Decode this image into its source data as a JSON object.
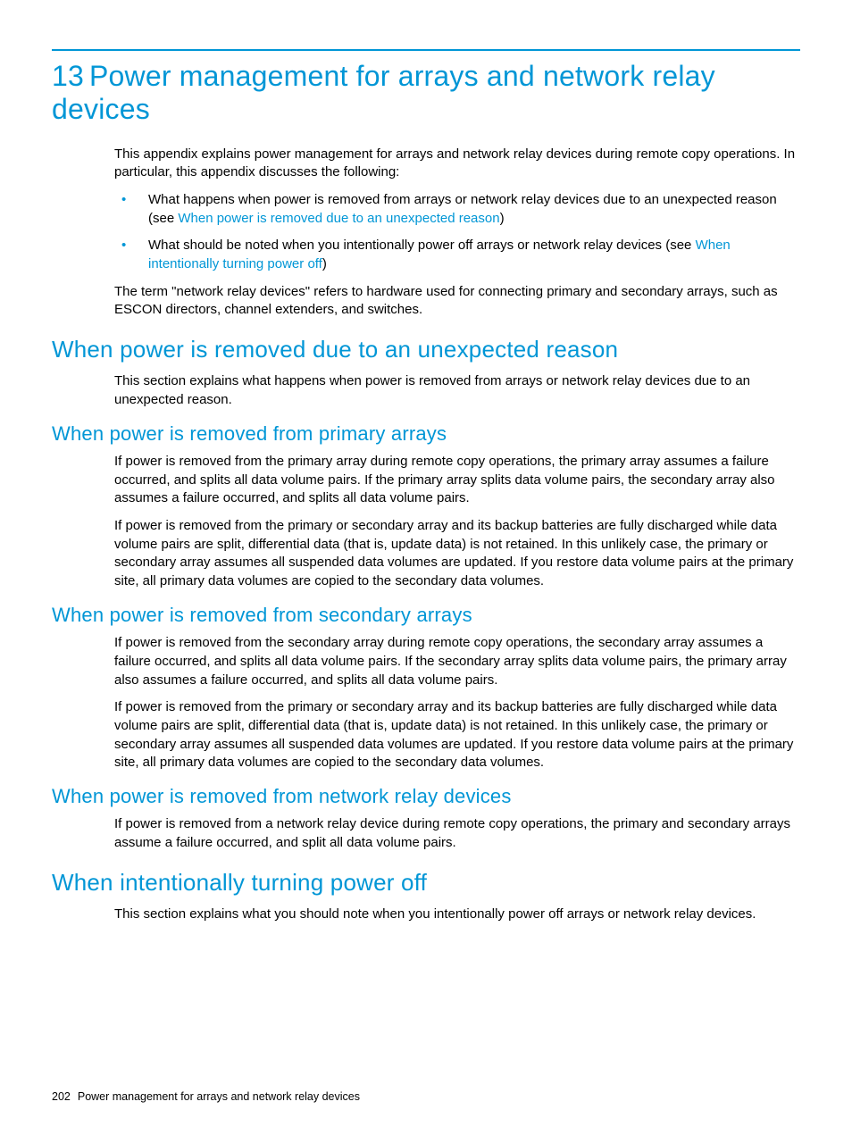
{
  "colors": {
    "accent": "#0096d6",
    "text": "#000000",
    "background": "#ffffff"
  },
  "typography": {
    "body_fontsize_pt": 11,
    "h1_fontsize_pt": 24,
    "h2_fontsize_pt": 19,
    "h3_fontsize_pt": 16,
    "font_family": "Arial"
  },
  "chapter": {
    "number": "13",
    "title": "Power management for arrays and network relay devices"
  },
  "intro": {
    "p1": "This appendix explains power management for arrays and network relay devices during remote copy operations. In particular, this appendix discusses the following:",
    "bullets": [
      {
        "pre": "What happens when power is removed from arrays or network relay devices due to an unexpected reason (see ",
        "link": "When power is removed due to an unexpected reason",
        "post": ")"
      },
      {
        "pre": "What should be noted when you intentionally power off arrays or network relay devices (see ",
        "link": "When intentionally turning power off",
        "post": ")"
      }
    ],
    "p2": "The term \"network relay devices\" refers to hardware used for connecting primary and secondary arrays, such as ESCON directors, channel extenders, and switches."
  },
  "sect_unexpected": {
    "title": "When power is removed due to an unexpected reason",
    "p1": "This section explains what happens when power is removed from arrays or network relay devices due to an unexpected reason."
  },
  "sect_primary": {
    "title": "When power is removed from primary arrays",
    "p1": "If power is removed from the primary array during remote copy operations, the primary array assumes a failure occurred, and splits all data volume pairs. If the primary array splits data volume pairs, the secondary array also assumes a failure occurred, and splits all data volume pairs.",
    "p2": "If power is removed from the primary or secondary array and its backup batteries are fully discharged while data volume pairs are split, differential data (that is, update data) is not retained. In this unlikely case, the primary or secondary array assumes all suspended data volumes are updated. If you restore data volume pairs at the primary site, all primary data volumes are copied to the secondary data volumes."
  },
  "sect_secondary": {
    "title": "When power is removed from secondary arrays",
    "p1": "If power is removed from the secondary array during remote copy operations, the secondary array assumes a failure occurred, and splits all data volume pairs. If the secondary array splits data volume pairs, the primary array also assumes a failure occurred, and splits all data volume pairs.",
    "p2": "If power is removed from the primary or secondary array and its backup batteries are fully discharged while data volume pairs are split, differential data (that is, update data) is not retained. In this unlikely case, the primary or secondary array assumes all suspended data volumes are updated. If you restore data volume pairs at the primary site, all primary data volumes are copied to the secondary data volumes."
  },
  "sect_network": {
    "title": "When power is removed from network relay devices",
    "p1": "If power is removed from a network relay device during remote copy operations, the primary and secondary arrays assume a failure occurred, and split all data volume pairs."
  },
  "sect_intentional": {
    "title": "When intentionally turning power off",
    "p1": "This section explains what you should note when you intentionally power off arrays or network relay devices."
  },
  "footer": {
    "page_number": "202",
    "running_title": "Power management for arrays and network relay devices"
  }
}
